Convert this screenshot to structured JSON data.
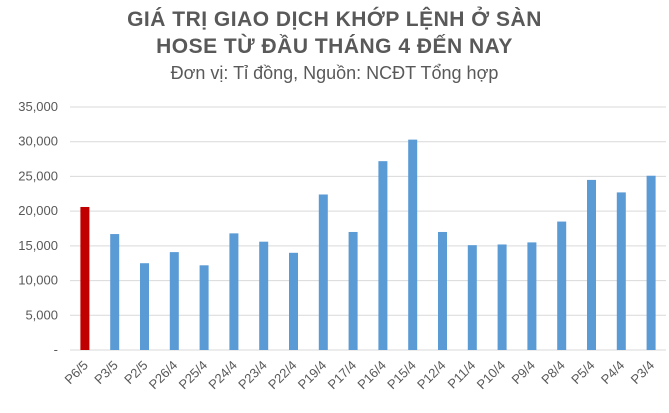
{
  "chart_data": {
    "type": "bar",
    "title_line1": "GIÁ TRỊ GIAO DỊCH KHỚP LỆNH Ở SÀN",
    "title_line2": "HOSE TỪ ĐẦU THÁNG 4 ĐẾN NAY",
    "subtitle": "Đơn vị: Tỉ đồng, Nguồn: NCĐT Tổng hợp",
    "categories": [
      "P6/5",
      "P3/5",
      "P2/5",
      "P26/4",
      "P25/4",
      "P24/4",
      "P23/4",
      "P22/4",
      "P19/4",
      "P17/4",
      "P16/4",
      "P15/4",
      "P12/4",
      "P11/4",
      "P10/4",
      "P9/4",
      "P8/4",
      "P5/4",
      "P4/4",
      "P3/4"
    ],
    "values": [
      20600,
      16700,
      12500,
      14100,
      12200,
      16800,
      15600,
      14000,
      22400,
      17000,
      27200,
      30300,
      17000,
      15100,
      15200,
      15500,
      18500,
      24500,
      22700,
      25100
    ],
    "ylim": [
      0,
      35000
    ],
    "yticks": [
      0,
      5000,
      10000,
      15000,
      20000,
      25000,
      30000,
      35000
    ],
    "ytick_labels": [
      "-",
      "5,000",
      "10,000",
      "15,000",
      "20,000",
      "25,000",
      "30,000",
      "35,000"
    ],
    "grid": true,
    "colors": {
      "highlight": "#C00000",
      "bar": "#5B9BD5",
      "grid": "#D9D9D9",
      "text": "#595959"
    },
    "highlight_index": 0
  }
}
